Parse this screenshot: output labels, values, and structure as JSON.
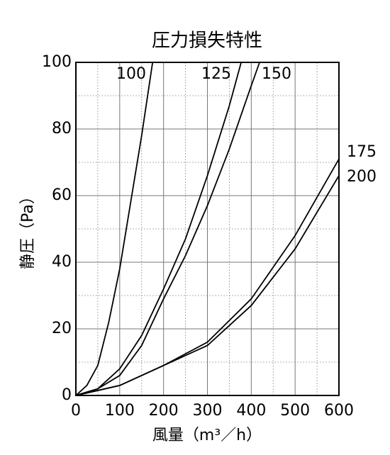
{
  "chart_data": {
    "type": "line",
    "title": "圧力損失特性",
    "x_label": "風量（m³／h）",
    "y_label": "静圧（Pa）",
    "xlim": [
      0,
      600
    ],
    "xticks": [
      0,
      100,
      200,
      300,
      400,
      500,
      600
    ],
    "ylim": [
      0,
      100
    ],
    "yticks": [
      0,
      20,
      40,
      60,
      80,
      100
    ],
    "grid": true,
    "color": "#000000",
    "series": [
      {
        "name": "100",
        "x": [
          0,
          25,
          50,
          75,
          100,
          125,
          150,
          175
        ],
        "values": [
          0,
          3,
          9,
          22,
          38,
          58,
          78,
          100
        ]
      },
      {
        "name": "125",
        "x": [
          0,
          50,
          100,
          150,
          200,
          250,
          300,
          350,
          377
        ],
        "values": [
          0,
          2,
          8,
          18,
          32,
          47,
          66,
          87,
          100
        ]
      },
      {
        "name": "150",
        "x": [
          0,
          50,
          100,
          150,
          200,
          250,
          300,
          350,
          400,
          419
        ],
        "values": [
          0,
          2,
          6,
          15,
          29,
          42,
          57,
          74,
          93,
          100
        ]
      },
      {
        "name": "175",
        "x": [
          0,
          100,
          200,
          300,
          400,
          500,
          600
        ],
        "values": [
          0,
          3,
          9,
          16,
          29,
          48,
          71
        ]
      },
      {
        "name": "200",
        "x": [
          0,
          100,
          200,
          300,
          400,
          500,
          600
        ],
        "values": [
          0,
          3,
          9,
          15,
          27,
          44,
          66
        ]
      }
    ]
  }
}
